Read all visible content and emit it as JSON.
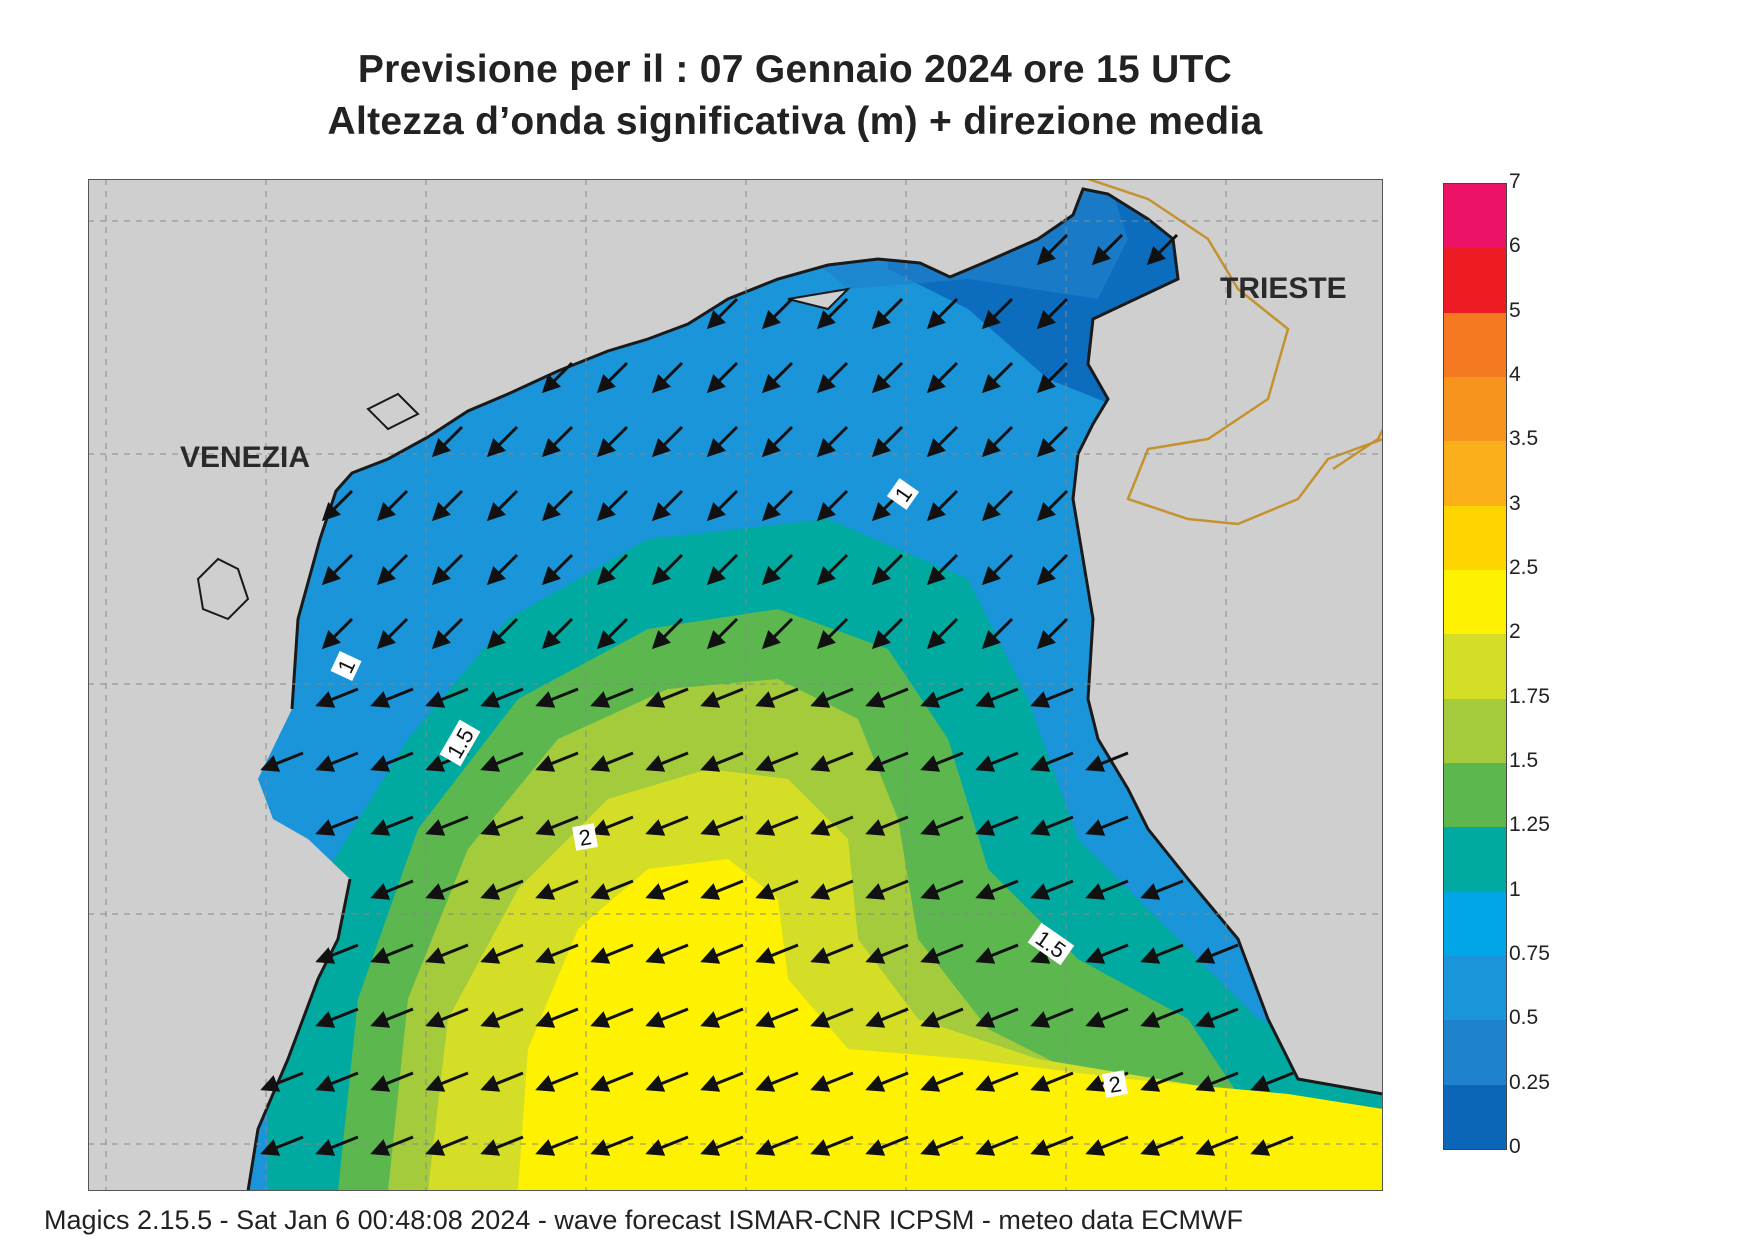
{
  "header": {
    "title_line1": "Previsione per il  :  07  Gennaio  2024   ore 15 UTC",
    "title_line2": "Altezza d’onda significativa (m) + direzione media"
  },
  "map": {
    "cities": [
      {
        "name": "VENEZIA"
      },
      {
        "name": "TRIESTE"
      }
    ],
    "contour_labels": [
      "1",
      "1",
      "1.5",
      "1.5",
      "2",
      "2"
    ],
    "land_color": "#cfcfcf",
    "coast_color": "#1a1a1a",
    "border_color": "#c4922e",
    "wave_direction": "from north-east towards south-west"
  },
  "colorbar": {
    "unit": "m",
    "levels": [
      "0",
      "0.25",
      "0.5",
      "0.75",
      "1",
      "1.25",
      "1.5",
      "1.75",
      "2",
      "2.5",
      "3",
      "3.5",
      "4",
      "5",
      "6",
      "7"
    ],
    "colors": [
      "#0b65b8",
      "#1f82cc",
      "#1a95d9",
      "#00a6e6",
      "#00aaa0",
      "#5cb84e",
      "#a4cb3c",
      "#d5de27",
      "#fff200",
      "#ffd500",
      "#fbb01b",
      "#f7941d",
      "#f47920",
      "#ed1c24",
      "#ec1266"
    ]
  },
  "footer": {
    "text": "Magics 2.15.5 - Sat Jan  6 00:48:08 2024 - wave forecast  ISMAR-CNR  ICPSM - meteo data    ECMWF"
  }
}
